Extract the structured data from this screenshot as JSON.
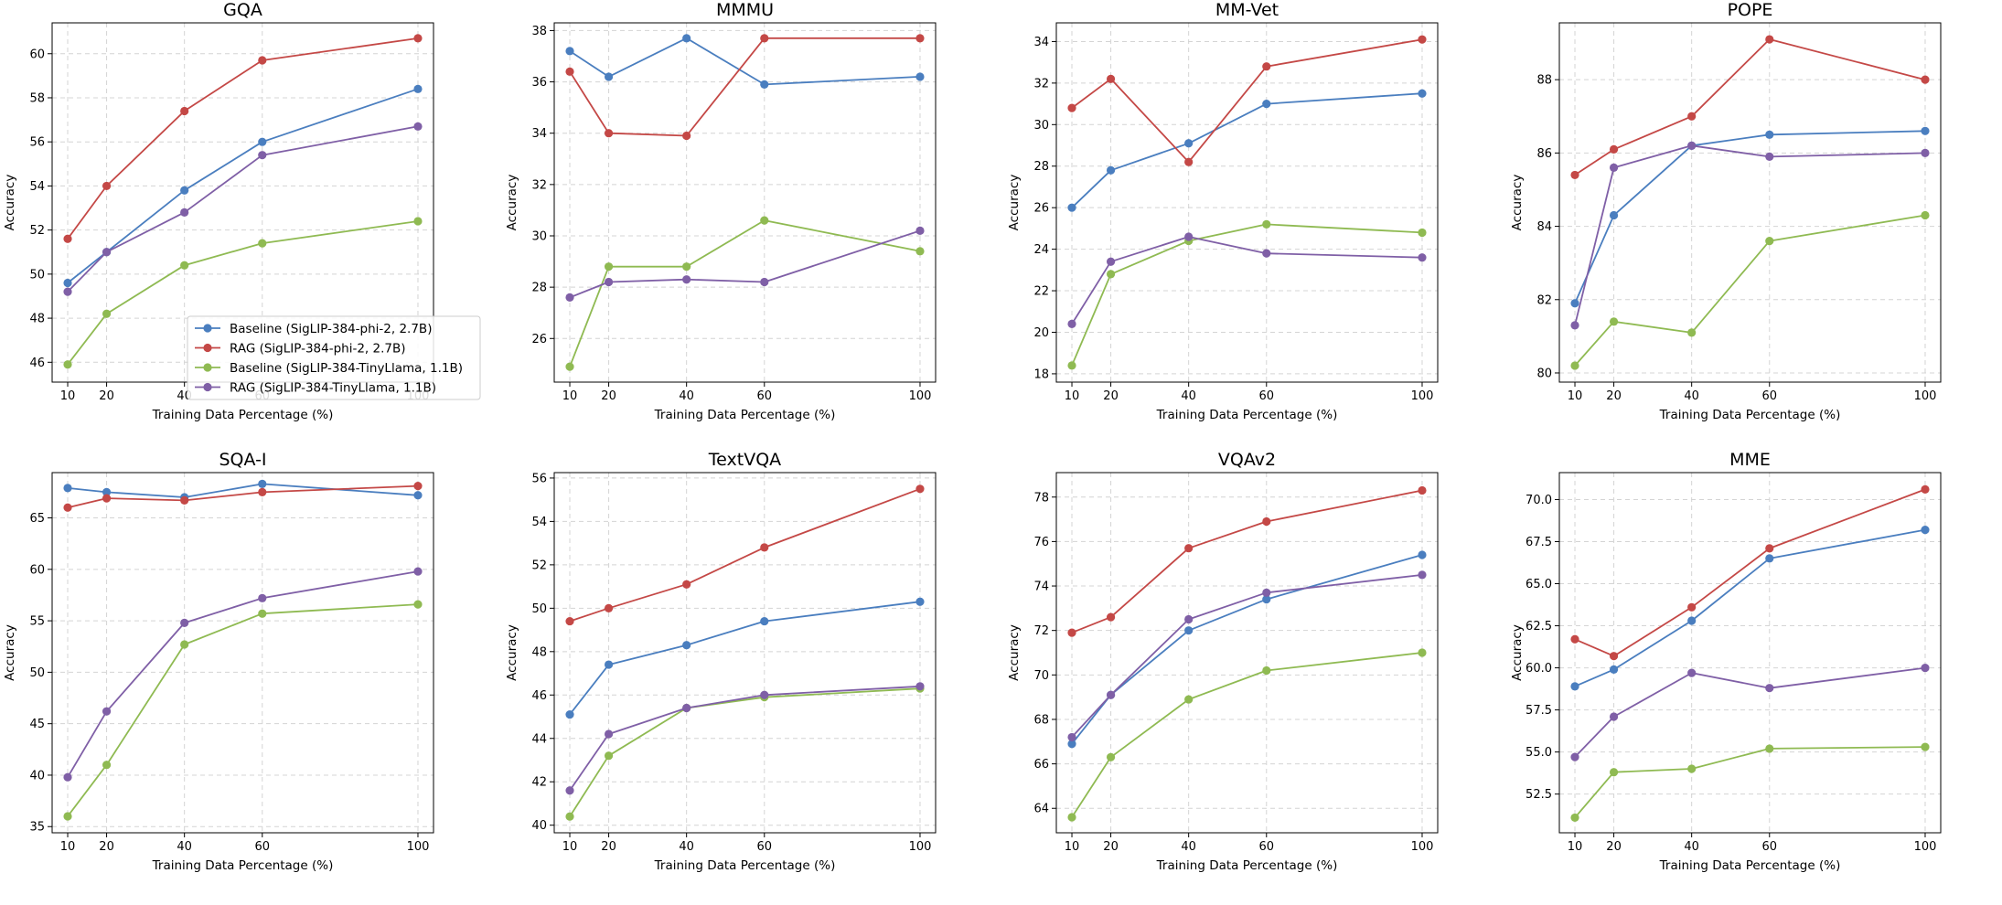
{
  "colors": {
    "blue": "#4a7ebf",
    "red": "#c44846",
    "green": "#8fba52",
    "purple": "#7f5fa6",
    "grid": "#d4d4d4"
  },
  "legend": {
    "position": "lower-right",
    "entries": [
      {
        "label": "Baseline (SigLIP-384-phi-2, 2.7B)",
        "color": "blue"
      },
      {
        "label": "RAG (SigLIP-384-phi-2, 2.7B)",
        "color": "red"
      },
      {
        "label": "Baseline (SigLIP-384-TinyLlama, 1.1B)",
        "color": "green"
      },
      {
        "label": "RAG (SigLIP-384-TinyLlama, 1.1B)",
        "color": "purple"
      }
    ]
  },
  "chart_data": [
    {
      "type": "line",
      "title": "GQA",
      "xlabel": "Training Data Percentage (%)",
      "ylabel": "Accuracy",
      "x": [
        10,
        20,
        40,
        60,
        100
      ],
      "xlim": [
        6,
        104
      ],
      "ylim": [
        45.1,
        61.4
      ],
      "yticks": [
        46,
        48,
        50,
        52,
        54,
        56,
        58,
        60
      ],
      "ytick_labels": [
        "46",
        "48",
        "50",
        "52",
        "54",
        "56",
        "58",
        "60"
      ],
      "grid": true,
      "series": [
        {
          "name": "Baseline (SigLIP-384-phi-2, 2.7B)",
          "color": "blue",
          "values": [
            49.6,
            51.0,
            53.8,
            56.0,
            58.4
          ]
        },
        {
          "name": "RAG (SigLIP-384-phi-2, 2.7B)",
          "color": "red",
          "values": [
            51.6,
            54.0,
            57.4,
            59.7,
            60.7
          ]
        },
        {
          "name": "Baseline (SigLIP-384-TinyLlama, 1.1B)",
          "color": "green",
          "values": [
            45.9,
            48.2,
            50.4,
            51.4,
            52.4
          ]
        },
        {
          "name": "RAG (SigLIP-384-TinyLlama, 1.1B)",
          "color": "purple",
          "values": [
            49.2,
            51.0,
            52.8,
            55.4,
            56.7
          ]
        }
      ]
    },
    {
      "type": "line",
      "title": "MMMU",
      "xlabel": "Training Data Percentage (%)",
      "ylabel": "Accuracy",
      "x": [
        10,
        20,
        40,
        60,
        100
      ],
      "xlim": [
        6,
        104
      ],
      "ylim": [
        24.3,
        38.3
      ],
      "yticks": [
        26,
        28,
        30,
        32,
        34,
        36,
        38
      ],
      "ytick_labels": [
        "26",
        "28",
        "30",
        "32",
        "34",
        "36",
        "38"
      ],
      "grid": true,
      "series": [
        {
          "name": "Baseline (SigLIP-384-phi-2, 2.7B)",
          "color": "blue",
          "values": [
            37.2,
            36.2,
            37.7,
            35.9,
            36.2
          ]
        },
        {
          "name": "RAG (SigLIP-384-phi-2, 2.7B)",
          "color": "red",
          "values": [
            36.4,
            34.0,
            33.9,
            37.7,
            37.7
          ]
        },
        {
          "name": "Baseline (SigLIP-384-TinyLlama, 1.1B)",
          "color": "green",
          "values": [
            24.9,
            28.8,
            28.8,
            30.6,
            29.4
          ]
        },
        {
          "name": "RAG (SigLIP-384-TinyLlama, 1.1B)",
          "color": "purple",
          "values": [
            27.6,
            28.2,
            28.3,
            28.2,
            30.2
          ]
        }
      ]
    },
    {
      "type": "line",
      "title": "MM-Vet",
      "xlabel": "Training Data Percentage (%)",
      "ylabel": "Accuracy",
      "x": [
        10,
        20,
        40,
        60,
        100
      ],
      "xlim": [
        6,
        104
      ],
      "ylim": [
        17.6,
        34.9
      ],
      "yticks": [
        18,
        20,
        22,
        24,
        26,
        28,
        30,
        32,
        34
      ],
      "ytick_labels": [
        "18",
        "20",
        "22",
        "24",
        "26",
        "28",
        "30",
        "32",
        "34"
      ],
      "grid": true,
      "series": [
        {
          "name": "Baseline (SigLIP-384-phi-2, 2.7B)",
          "color": "blue",
          "values": [
            26.0,
            27.8,
            29.1,
            31.0,
            31.5
          ]
        },
        {
          "name": "RAG (SigLIP-384-phi-2, 2.7B)",
          "color": "red",
          "values": [
            30.8,
            32.2,
            28.2,
            32.8,
            34.1
          ]
        },
        {
          "name": "Baseline (SigLIP-384-TinyLlama, 1.1B)",
          "color": "green",
          "values": [
            18.4,
            22.8,
            24.4,
            25.2,
            24.8
          ]
        },
        {
          "name": "RAG (SigLIP-384-TinyLlama, 1.1B)",
          "color": "purple",
          "values": [
            20.4,
            23.4,
            24.6,
            23.8,
            23.6
          ]
        }
      ]
    },
    {
      "type": "line",
      "title": "POPE",
      "xlabel": "Training Data Percentage (%)",
      "ylabel": "Accuracy",
      "x": [
        10,
        20,
        40,
        60,
        100
      ],
      "xlim": [
        6,
        104
      ],
      "ylim": [
        79.75,
        89.55
      ],
      "yticks": [
        80,
        82,
        84,
        86,
        88
      ],
      "ytick_labels": [
        "80",
        "82",
        "84",
        "86",
        "88"
      ],
      "grid": true,
      "series": [
        {
          "name": "Baseline (SigLIP-384-phi-2, 2.7B)",
          "color": "blue",
          "values": [
            81.9,
            84.3,
            86.2,
            86.5,
            86.6
          ]
        },
        {
          "name": "RAG (SigLIP-384-phi-2, 2.7B)",
          "color": "red",
          "values": [
            85.4,
            86.1,
            87.0,
            89.1,
            88.0
          ]
        },
        {
          "name": "Baseline (SigLIP-384-TinyLlama, 1.1B)",
          "color": "green",
          "values": [
            80.2,
            81.4,
            81.1,
            83.6,
            84.3
          ]
        },
        {
          "name": "RAG (SigLIP-384-TinyLlama, 1.1B)",
          "color": "purple",
          "values": [
            81.3,
            85.6,
            86.2,
            85.9,
            86.0
          ]
        }
      ]
    },
    {
      "type": "line",
      "title": "SQA-I",
      "xlabel": "Training Data Percentage (%)",
      "ylabel": "Accuracy",
      "x": [
        10,
        20,
        40,
        60,
        100
      ],
      "xlim": [
        6,
        104
      ],
      "ylim": [
        34.4,
        69.4
      ],
      "yticks": [
        35,
        40,
        45,
        50,
        55,
        60,
        65
      ],
      "ytick_labels": [
        "35",
        "40",
        "45",
        "50",
        "55",
        "60",
        "65"
      ],
      "grid": true,
      "series": [
        {
          "name": "Baseline (SigLIP-384-phi-2, 2.7B)",
          "color": "blue",
          "values": [
            67.9,
            67.5,
            67.0,
            68.3,
            67.2
          ]
        },
        {
          "name": "RAG (SigLIP-384-phi-2, 2.7B)",
          "color": "red",
          "values": [
            66.0,
            66.9,
            66.7,
            67.5,
            68.1
          ]
        },
        {
          "name": "Baseline (SigLIP-384-TinyLlama, 1.1B)",
          "color": "green",
          "values": [
            36.0,
            41.0,
            52.7,
            55.7,
            56.6
          ]
        },
        {
          "name": "RAG (SigLIP-384-TinyLlama, 1.1B)",
          "color": "purple",
          "values": [
            39.8,
            46.2,
            54.8,
            57.2,
            59.8
          ]
        }
      ]
    },
    {
      "type": "line",
      "title": "TextVQA",
      "xlabel": "Training Data Percentage (%)",
      "ylabel": "Accuracy",
      "x": [
        10,
        20,
        40,
        60,
        100
      ],
      "xlim": [
        6,
        104
      ],
      "ylim": [
        39.65,
        56.25
      ],
      "yticks": [
        40,
        42,
        44,
        46,
        48,
        50,
        52,
        54,
        56
      ],
      "ytick_labels": [
        "40",
        "42",
        "44",
        "46",
        "48",
        "50",
        "52",
        "54",
        "56"
      ],
      "grid": true,
      "series": [
        {
          "name": "Baseline (SigLIP-384-phi-2, 2.7B)",
          "color": "blue",
          "values": [
            45.1,
            47.4,
            48.3,
            49.4,
            50.3
          ]
        },
        {
          "name": "RAG (SigLIP-384-phi-2, 2.7B)",
          "color": "red",
          "values": [
            49.4,
            50.0,
            51.1,
            52.8,
            55.5
          ]
        },
        {
          "name": "Baseline (SigLIP-384-TinyLlama, 1.1B)",
          "color": "green",
          "values": [
            40.4,
            43.2,
            45.4,
            45.9,
            46.3
          ]
        },
        {
          "name": "RAG (SigLIP-384-TinyLlama, 1.1B)",
          "color": "purple",
          "values": [
            41.6,
            44.2,
            45.4,
            46.0,
            46.4
          ]
        }
      ]
    },
    {
      "type": "line",
      "title": "VQAv2",
      "xlabel": "Training Data Percentage (%)",
      "ylabel": "Accuracy",
      "x": [
        10,
        20,
        40,
        60,
        100
      ],
      "xlim": [
        6,
        104
      ],
      "ylim": [
        62.9,
        79.1
      ],
      "yticks": [
        64,
        66,
        68,
        70,
        72,
        74,
        76,
        78
      ],
      "ytick_labels": [
        "64",
        "66",
        "68",
        "70",
        "72",
        "74",
        "76",
        "78"
      ],
      "grid": true,
      "series": [
        {
          "name": "Baseline (SigLIP-384-phi-2, 2.7B)",
          "color": "blue",
          "values": [
            66.9,
            69.1,
            72.0,
            73.4,
            75.4
          ]
        },
        {
          "name": "RAG (SigLIP-384-phi-2, 2.7B)",
          "color": "red",
          "values": [
            71.9,
            72.6,
            75.7,
            76.9,
            78.3
          ]
        },
        {
          "name": "Baseline (SigLIP-384-TinyLlama, 1.1B)",
          "color": "green",
          "values": [
            63.6,
            66.3,
            68.9,
            70.2,
            71.0
          ]
        },
        {
          "name": "RAG (SigLIP-384-TinyLlama, 1.1B)",
          "color": "purple",
          "values": [
            67.2,
            69.1,
            72.5,
            73.7,
            74.5
          ]
        }
      ]
    },
    {
      "type": "line",
      "title": "MME",
      "xlabel": "Training Data Percentage (%)",
      "ylabel": "Accuracy",
      "x": [
        10,
        20,
        40,
        60,
        100
      ],
      "xlim": [
        6,
        104
      ],
      "ylim": [
        50.2,
        71.6
      ],
      "yticks": [
        52.5,
        55.0,
        57.5,
        60.0,
        62.5,
        65.0,
        67.5,
        70.0
      ],
      "ytick_labels": [
        "52.5",
        "55.0",
        "57.5",
        "60.0",
        "62.5",
        "65.0",
        "67.5",
        "70.0"
      ],
      "grid": true,
      "series": [
        {
          "name": "Baseline (SigLIP-384-phi-2, 2.7B)",
          "color": "blue",
          "values": [
            58.9,
            59.9,
            62.8,
            66.5,
            68.2
          ]
        },
        {
          "name": "RAG (SigLIP-384-phi-2, 2.7B)",
          "color": "red",
          "values": [
            61.7,
            60.7,
            63.6,
            67.1,
            70.6
          ]
        },
        {
          "name": "Baseline (SigLIP-384-TinyLlama, 1.1B)",
          "color": "green",
          "values": [
            51.1,
            53.8,
            54.0,
            55.2,
            55.3
          ]
        },
        {
          "name": "RAG (SigLIP-384-TinyLlama, 1.1B)",
          "color": "purple",
          "values": [
            54.7,
            57.1,
            59.7,
            58.8,
            60.0
          ]
        }
      ]
    }
  ]
}
